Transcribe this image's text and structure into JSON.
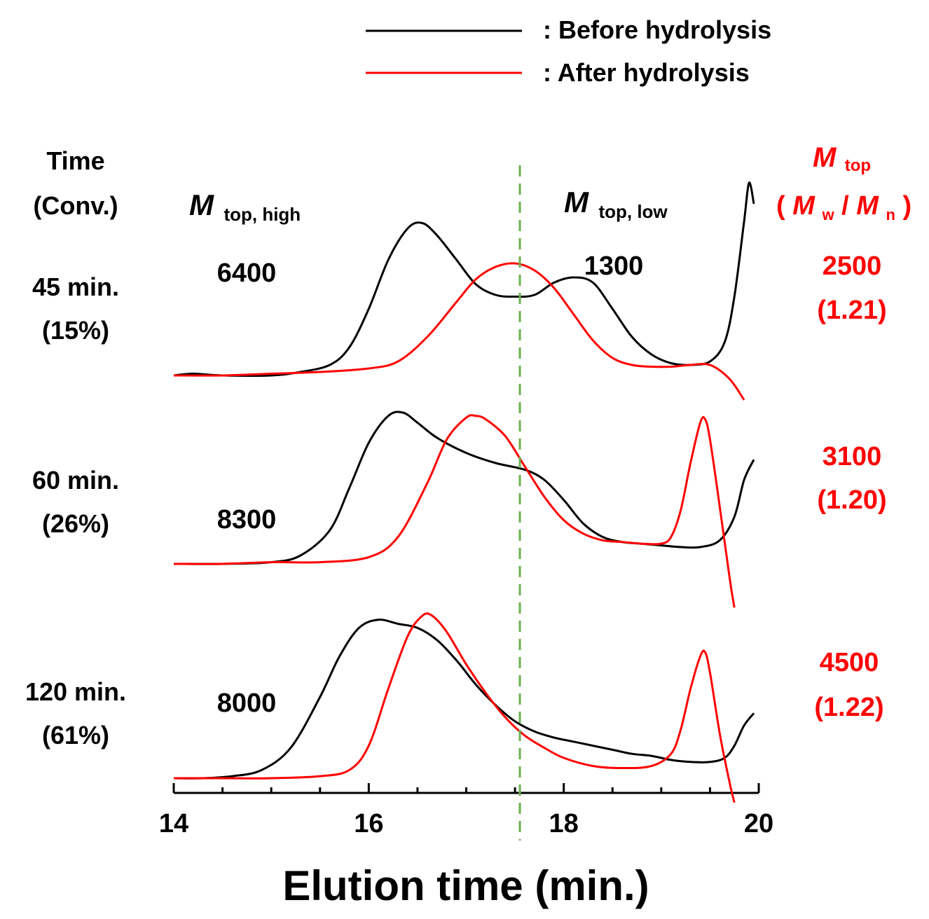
{
  "chart_data": {
    "type": "line",
    "xlabel": "Elution time (min.)",
    "xlim": [
      14,
      20
    ],
    "x_ticks": [
      "14",
      "16",
      "18",
      "20"
    ],
    "divider_x": 17.55,
    "legend": {
      "position": "top",
      "entries": [
        {
          "label": ": Before hydrolysis",
          "color": "#000000"
        },
        {
          "label": ": After hydrolysis",
          "color": "#ff0000"
        }
      ]
    },
    "header_left": {
      "line1": "Time",
      "line2": "(Conv.)"
    },
    "header_high": {
      "main": "M",
      "sub": "top, high"
    },
    "header_low": {
      "main": "M",
      "sub": "top, low"
    },
    "header_right": {
      "main": "M",
      "sub": "top",
      "ratio_open": "(",
      "mw": "M",
      "mw_sub": "w",
      "slash": " / ",
      "mn": "M",
      "mn_sub": "n",
      "ratio_close": ")"
    },
    "panels": [
      {
        "time": "45 min.",
        "conv": "(15%)",
        "mtop_high": "6400",
        "mtop_low": "1300",
        "mtop_after": "2500",
        "dispersity": "(1.21)",
        "series": [
          {
            "name": "Before hydrolysis",
            "color": "#000000",
            "x": [
              14.0,
              14.2,
              14.5,
              15.0,
              15.3,
              15.6,
              15.8,
              16.0,
              16.2,
              16.4,
              16.55,
              16.7,
              16.9,
              17.1,
              17.3,
              17.5,
              17.7,
              17.9,
              18.1,
              18.3,
              18.5,
              18.7,
              18.9,
              19.1,
              19.3,
              19.5,
              19.65,
              19.75,
              19.85,
              19.9,
              19.95
            ],
            "y": [
              0.0,
              0.01,
              0.0,
              0.0,
              0.02,
              0.06,
              0.16,
              0.38,
              0.66,
              0.84,
              0.87,
              0.8,
              0.66,
              0.52,
              0.46,
              0.45,
              0.46,
              0.53,
              0.56,
              0.53,
              0.38,
              0.22,
              0.12,
              0.07,
              0.06,
              0.08,
              0.19,
              0.45,
              0.88,
              1.1,
              0.98
            ]
          },
          {
            "name": "After hydrolysis",
            "color": "#ff0000",
            "x": [
              14.0,
              14.5,
              15.0,
              15.5,
              16.0,
              16.3,
              16.6,
              16.9,
              17.1,
              17.3,
              17.5,
              17.7,
              17.9,
              18.1,
              18.3,
              18.5,
              18.7,
              18.9,
              19.1,
              19.3,
              19.5,
              19.7,
              19.85
            ],
            "y": [
              0.0,
              0.0,
              0.01,
              0.02,
              0.04,
              0.08,
              0.22,
              0.42,
              0.55,
              0.62,
              0.64,
              0.6,
              0.5,
              0.35,
              0.2,
              0.1,
              0.06,
              0.05,
              0.05,
              0.06,
              0.06,
              -0.02,
              -0.14
            ]
          }
        ]
      },
      {
        "time": "60 min.",
        "conv": "(26%)",
        "mtop_high": "8300",
        "mtop_after": "3100",
        "dispersity": "(1.20)",
        "series": [
          {
            "name": "Before hydrolysis",
            "color": "#000000",
            "x": [
              14.0,
              14.5,
              15.0,
              15.3,
              15.6,
              15.8,
              16.0,
              16.2,
              16.35,
              16.5,
              16.7,
              17.0,
              17.3,
              17.6,
              17.8,
              18.0,
              18.2,
              18.4,
              18.6,
              18.8,
              19.0,
              19.2,
              19.4,
              19.6,
              19.75,
              19.85,
              19.95
            ],
            "y": [
              0.0,
              0.0,
              0.01,
              0.05,
              0.2,
              0.45,
              0.72,
              0.88,
              0.9,
              0.84,
              0.75,
              0.66,
              0.6,
              0.56,
              0.5,
              0.38,
              0.24,
              0.16,
              0.13,
              0.12,
              0.11,
              0.1,
              0.1,
              0.14,
              0.28,
              0.5,
              0.62
            ]
          },
          {
            "name": "After hydrolysis",
            "color": "#ff0000",
            "x": [
              14.0,
              14.5,
              15.0,
              15.5,
              16.0,
              16.3,
              16.6,
              16.8,
              17.0,
              17.1,
              17.2,
              17.4,
              17.6,
              17.8,
              18.0,
              18.2,
              18.4,
              18.6,
              18.8,
              19.0,
              19.1,
              19.2,
              19.3,
              19.4,
              19.45,
              19.5,
              19.6,
              19.7,
              19.75
            ],
            "y": [
              0.0,
              0.0,
              0.01,
              0.01,
              0.04,
              0.16,
              0.48,
              0.74,
              0.87,
              0.88,
              0.86,
              0.76,
              0.58,
              0.4,
              0.26,
              0.18,
              0.14,
              0.13,
              0.12,
              0.12,
              0.16,
              0.32,
              0.6,
              0.84,
              0.86,
              0.74,
              0.34,
              -0.08,
              -0.26
            ]
          }
        ]
      },
      {
        "time": "120 min.",
        "conv": "(61%)",
        "mtop_high": "8000",
        "mtop_after": "4500",
        "dispersity": "(1.22)",
        "series": [
          {
            "name": "Before hydrolysis",
            "color": "#000000",
            "x": [
              14.0,
              14.3,
              14.6,
              14.9,
              15.2,
              15.5,
              15.7,
              15.9,
              16.1,
              16.3,
              16.5,
              16.7,
              16.9,
              17.1,
              17.3,
              17.5,
              17.7,
              17.9,
              18.1,
              18.3,
              18.5,
              18.7,
              18.9,
              19.1,
              19.3,
              19.5,
              19.65,
              19.75,
              19.85,
              19.95
            ],
            "y": [
              0.0,
              0.0,
              0.01,
              0.04,
              0.15,
              0.4,
              0.6,
              0.74,
              0.78,
              0.76,
              0.74,
              0.68,
              0.58,
              0.46,
              0.36,
              0.28,
              0.23,
              0.2,
              0.18,
              0.16,
              0.14,
              0.12,
              0.11,
              0.09,
              0.08,
              0.08,
              0.1,
              0.16,
              0.26,
              0.32
            ]
          },
          {
            "name": "After hydrolysis",
            "color": "#ff0000",
            "x": [
              14.0,
              14.5,
              15.0,
              15.5,
              15.8,
              16.0,
              16.2,
              16.4,
              16.55,
              16.65,
              16.8,
              17.0,
              17.2,
              17.4,
              17.6,
              17.8,
              18.0,
              18.3,
              18.6,
              18.9,
              19.1,
              19.2,
              19.3,
              19.4,
              19.45,
              19.5,
              19.6,
              19.7,
              19.75
            ],
            "y": [
              0.0,
              0.0,
              0.0,
              0.01,
              0.04,
              0.16,
              0.44,
              0.7,
              0.8,
              0.8,
              0.72,
              0.56,
              0.42,
              0.3,
              0.21,
              0.15,
              0.1,
              0.06,
              0.05,
              0.06,
              0.12,
              0.24,
              0.44,
              0.6,
              0.62,
              0.52,
              0.22,
              -0.02,
              -0.12
            ]
          }
        ]
      }
    ]
  }
}
